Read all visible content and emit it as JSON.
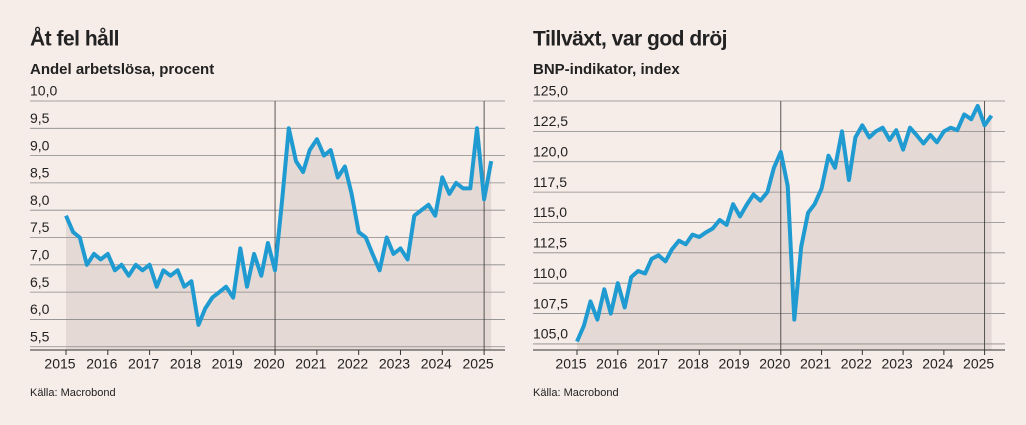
{
  "chart_data": [
    {
      "type": "line",
      "title": "Åt fel håll",
      "subtitle": "Andel arbetslösa, procent",
      "source": "Källa: Macrobond",
      "x": [
        2015,
        2015.17,
        2015.33,
        2015.5,
        2015.67,
        2015.83,
        2016,
        2016.17,
        2016.33,
        2016.5,
        2016.67,
        2016.83,
        2017,
        2017.17,
        2017.33,
        2017.5,
        2017.67,
        2017.83,
        2018,
        2018.17,
        2018.33,
        2018.5,
        2018.67,
        2018.83,
        2019,
        2019.17,
        2019.33,
        2019.5,
        2019.67,
        2019.83,
        2020,
        2020.17,
        2020.33,
        2020.5,
        2020.67,
        2020.83,
        2021,
        2021.17,
        2021.33,
        2021.5,
        2021.67,
        2021.83,
        2022,
        2022.17,
        2022.33,
        2022.5,
        2022.67,
        2022.83,
        2023,
        2023.17,
        2023.33,
        2023.5,
        2023.67,
        2023.83,
        2024,
        2024.17,
        2024.33,
        2024.5,
        2024.67,
        2024.83,
        2025,
        2025.17
      ],
      "values": [
        7.9,
        7.6,
        7.5,
        7.0,
        7.2,
        7.1,
        7.2,
        6.9,
        7.0,
        6.8,
        7.0,
        6.9,
        7.0,
        6.6,
        6.9,
        6.8,
        6.9,
        6.6,
        6.7,
        5.9,
        6.2,
        6.4,
        6.5,
        6.6,
        6.4,
        7.3,
        6.6,
        7.2,
        6.8,
        7.4,
        6.9,
        8.2,
        9.5,
        8.9,
        8.7,
        9.1,
        9.3,
        9.0,
        9.1,
        8.6,
        8.8,
        8.3,
        7.6,
        7.5,
        7.2,
        6.9,
        7.5,
        7.2,
        7.3,
        7.1,
        7.9,
        8.0,
        8.1,
        7.9,
        8.6,
        8.3,
        8.5,
        8.4,
        8.4,
        9.5,
        8.2,
        8.9
      ],
      "color": "#1f9bd1",
      "fill": "#e4d9d4",
      "xlim": [
        2015,
        2025.5
      ],
      "ylim": [
        5.44,
        10
      ],
      "xticks": [
        2015,
        2016,
        2017,
        2018,
        2019,
        2020,
        2021,
        2022,
        2023,
        2024,
        2025
      ],
      "yticks": [
        {
          "value": 5.5,
          "label": "5,5"
        },
        {
          "value": 6,
          "label": "6,0"
        },
        {
          "value": 6.5,
          "label": "6,5"
        },
        {
          "value": 7,
          "label": "7,0"
        },
        {
          "value": 7.5,
          "label": "7,5"
        },
        {
          "value": 8,
          "label": "8,0"
        },
        {
          "value": 8.5,
          "label": "8,5"
        },
        {
          "value": 9,
          "label": "9,0"
        },
        {
          "value": 9.5,
          "label": "9,5"
        },
        {
          "value": 10,
          "label": "10,0"
        }
      ],
      "xlines": [
        2020,
        2025
      ],
      "grid": true
    },
    {
      "type": "line",
      "title": "Tillväxt, var god dröj",
      "subtitle": "BNP-indikator, index",
      "source": "Källa: Macrobond",
      "x": [
        2015,
        2015.17,
        2015.33,
        2015.5,
        2015.67,
        2015.83,
        2016,
        2016.17,
        2016.33,
        2016.5,
        2016.67,
        2016.83,
        2017,
        2017.17,
        2017.33,
        2017.5,
        2017.67,
        2017.83,
        2018,
        2018.17,
        2018.33,
        2018.5,
        2018.67,
        2018.83,
        2019,
        2019.17,
        2019.33,
        2019.5,
        2019.67,
        2019.83,
        2020,
        2020.17,
        2020.33,
        2020.5,
        2020.67,
        2020.83,
        2021,
        2021.17,
        2021.33,
        2021.5,
        2021.67,
        2021.83,
        2022,
        2022.17,
        2022.33,
        2022.5,
        2022.67,
        2022.83,
        2023,
        2023.17,
        2023.33,
        2023.5,
        2023.67,
        2023.83,
        2024,
        2024.17,
        2024.33,
        2024.5,
        2024.67,
        2024.83,
        2025,
        2025.17
      ],
      "values": [
        105.2,
        106.5,
        108.5,
        107.0,
        109.5,
        107.5,
        110.0,
        108.0,
        110.5,
        111.0,
        110.8,
        112.0,
        112.3,
        111.8,
        112.8,
        113.5,
        113.2,
        114.0,
        113.8,
        114.2,
        114.5,
        115.2,
        114.8,
        116.5,
        115.5,
        116.5,
        117.3,
        116.8,
        117.5,
        119.5,
        120.8,
        118.0,
        107.0,
        113.0,
        115.8,
        116.5,
        117.8,
        120.5,
        119.5,
        122.5,
        118.5,
        122.0,
        123.0,
        122.0,
        122.5,
        122.8,
        121.8,
        122.6,
        121.0,
        122.8,
        122.2,
        121.5,
        122.2,
        121.6,
        122.5,
        122.8,
        122.6,
        123.9,
        123.5,
        124.6,
        123.0,
        123.8
      ],
      "color": "#1f9bd1",
      "fill": "#e4d9d4",
      "xlim": [
        2015,
        2025.5
      ],
      "ylim": [
        104.5,
        125
      ],
      "xticks": [
        2015,
        2016,
        2017,
        2018,
        2019,
        2020,
        2021,
        2022,
        2023,
        2024,
        2025
      ],
      "yticks": [
        {
          "value": 105,
          "label": "105,0"
        },
        {
          "value": 107.5,
          "label": "107,5"
        },
        {
          "value": 110,
          "label": "110,0"
        },
        {
          "value": 112.5,
          "label": "112,5"
        },
        {
          "value": 115,
          "label": "115,0"
        },
        {
          "value": 117.5,
          "label": "117,5"
        },
        {
          "value": 120,
          "label": "120,0"
        },
        {
          "value": 122.5,
          "label": "122,5"
        },
        {
          "value": 125,
          "label": "125,0"
        }
      ],
      "xlines": [
        2020,
        2025
      ],
      "grid": true
    }
  ]
}
